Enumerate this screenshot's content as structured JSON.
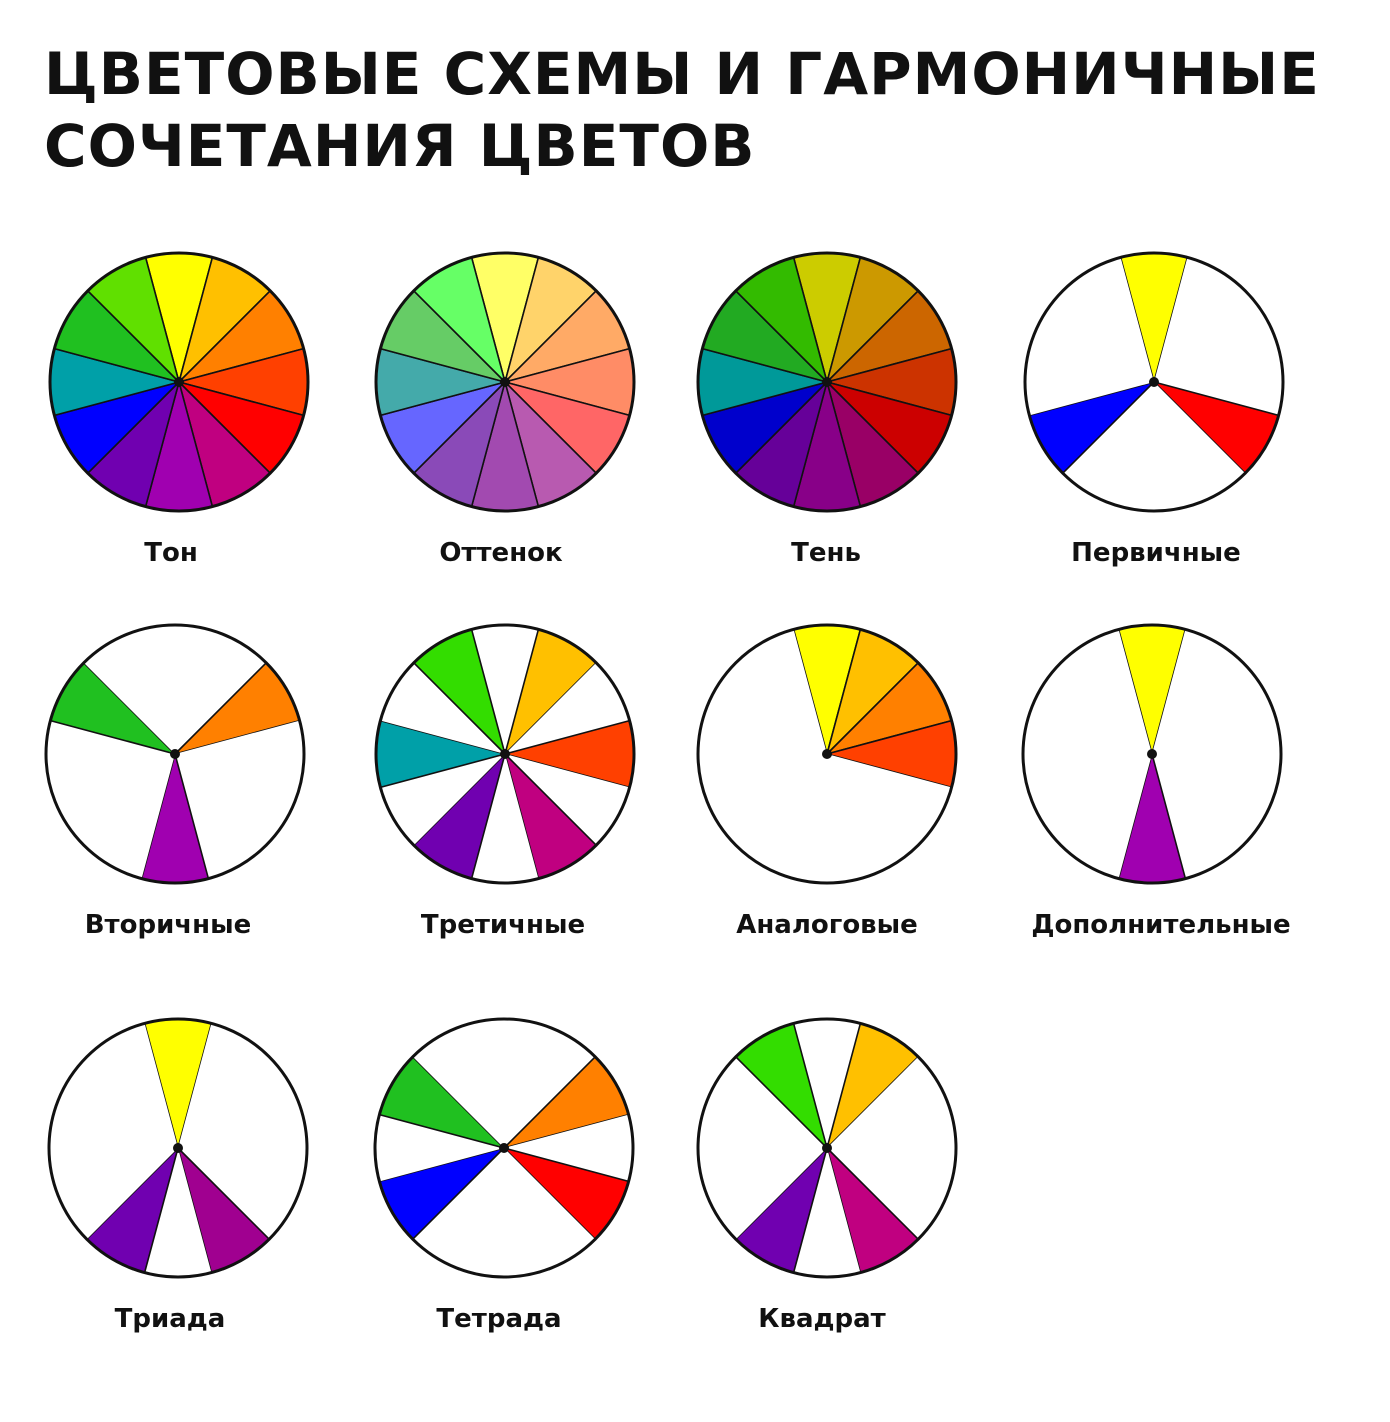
{
  "title": {
    "line1": "ЦВЕТОВЫЕ СХЕМЫ И ГАРМОНИЧНЫЕ",
    "line2": "СОЧЕТАНИЯ ЦВЕТОВ"
  },
  "wheels": [
    {
      "label": "Тон",
      "segments": [
        "#ffff00",
        "#ffc000",
        "#ff8000",
        "#ff4000",
        "#ff0000",
        "#c00080",
        "#a000b0",
        "#7000b0",
        "#0000ff",
        "#00a0a8",
        "#20c020",
        "#60e000"
      ]
    },
    {
      "label": "Оттенок",
      "segments": [
        "#ffff66",
        "#ffd36a",
        "#ffaa66",
        "#ff8c66",
        "#ff6666",
        "#b85ab0",
        "#a24ab0",
        "#8a4ab8",
        "#6666ff",
        "#44aaaa",
        "#66cc66",
        "#66ff66"
      ]
    },
    {
      "label": "Тень",
      "segments": [
        "#cccc00",
        "#cc9900",
        "#cc6600",
        "#cc3300",
        "#cc0000",
        "#990066",
        "#880088",
        "#660099",
        "#0000cc",
        "#009999",
        "#22aa22",
        "#33bb00"
      ]
    },
    {
      "label": "Первичные",
      "segments": [
        "#ffff00",
        "#ffffff",
        "#ffffff",
        "#ffffff",
        "#ff0000",
        "#ffffff",
        "#ffffff",
        "#ffffff",
        "#0000ff",
        "#ffffff",
        "#ffffff",
        "#ffffff"
      ]
    },
    {
      "label": "Вторичные",
      "segments": [
        "#ffffff",
        "#ffffff",
        "#ff8000",
        "#ffffff",
        "#ffffff",
        "#ffffff",
        "#a000b0",
        "#ffffff",
        "#ffffff",
        "#ffffff",
        "#20c020",
        "#ffffff"
      ]
    },
    {
      "label": "Третичные",
      "segments": [
        "#ffffff",
        "#ffc000",
        "#ffffff",
        "#ff4000",
        "#ffffff",
        "#c00080",
        "#ffffff",
        "#7000b0",
        "#ffffff",
        "#00a0a8",
        "#ffffff",
        "#33dd00"
      ]
    },
    {
      "label": "Аналоговые",
      "segments": [
        "#ffff00",
        "#ffc000",
        "#ff8000",
        "#ff4000",
        "#ffffff",
        "#ffffff",
        "#ffffff",
        "#ffffff",
        "#ffffff",
        "#ffffff",
        "#ffffff",
        "#ffffff"
      ]
    },
    {
      "label": "Дополнительные",
      "segments": [
        "#ffff00",
        "#ffffff",
        "#ffffff",
        "#ffffff",
        "#ffffff",
        "#ffffff",
        "#a000b0",
        "#ffffff",
        "#ffffff",
        "#ffffff",
        "#ffffff",
        "#ffffff"
      ]
    },
    {
      "label": "Триада",
      "segments": [
        "#ffff00",
        "#ffffff",
        "#ffffff",
        "#ffffff",
        "#ffffff",
        "#a00090",
        "#ffffff",
        "#7000b0",
        "#ffffff",
        "#ffffff",
        "#ffffff",
        "#ffffff"
      ]
    },
    {
      "label": "Тетрада",
      "segments": [
        "#ffffff",
        "#ffffff",
        "#ff8000",
        "#ffffff",
        "#ff0000",
        "#ffffff",
        "#ffffff",
        "#ffffff",
        "#0000ff",
        "#ffffff",
        "#20c020",
        "#ffffff"
      ]
    },
    {
      "label": "Квадрат",
      "segments": [
        "#ffffff",
        "#ffc000",
        "#ffffff",
        "#ffffff",
        "#ffffff",
        "#c00080",
        "#ffffff",
        "#7000b0",
        "#ffffff",
        "#ffffff",
        "#ffffff",
        "#33dd00"
      ]
    }
  ]
}
